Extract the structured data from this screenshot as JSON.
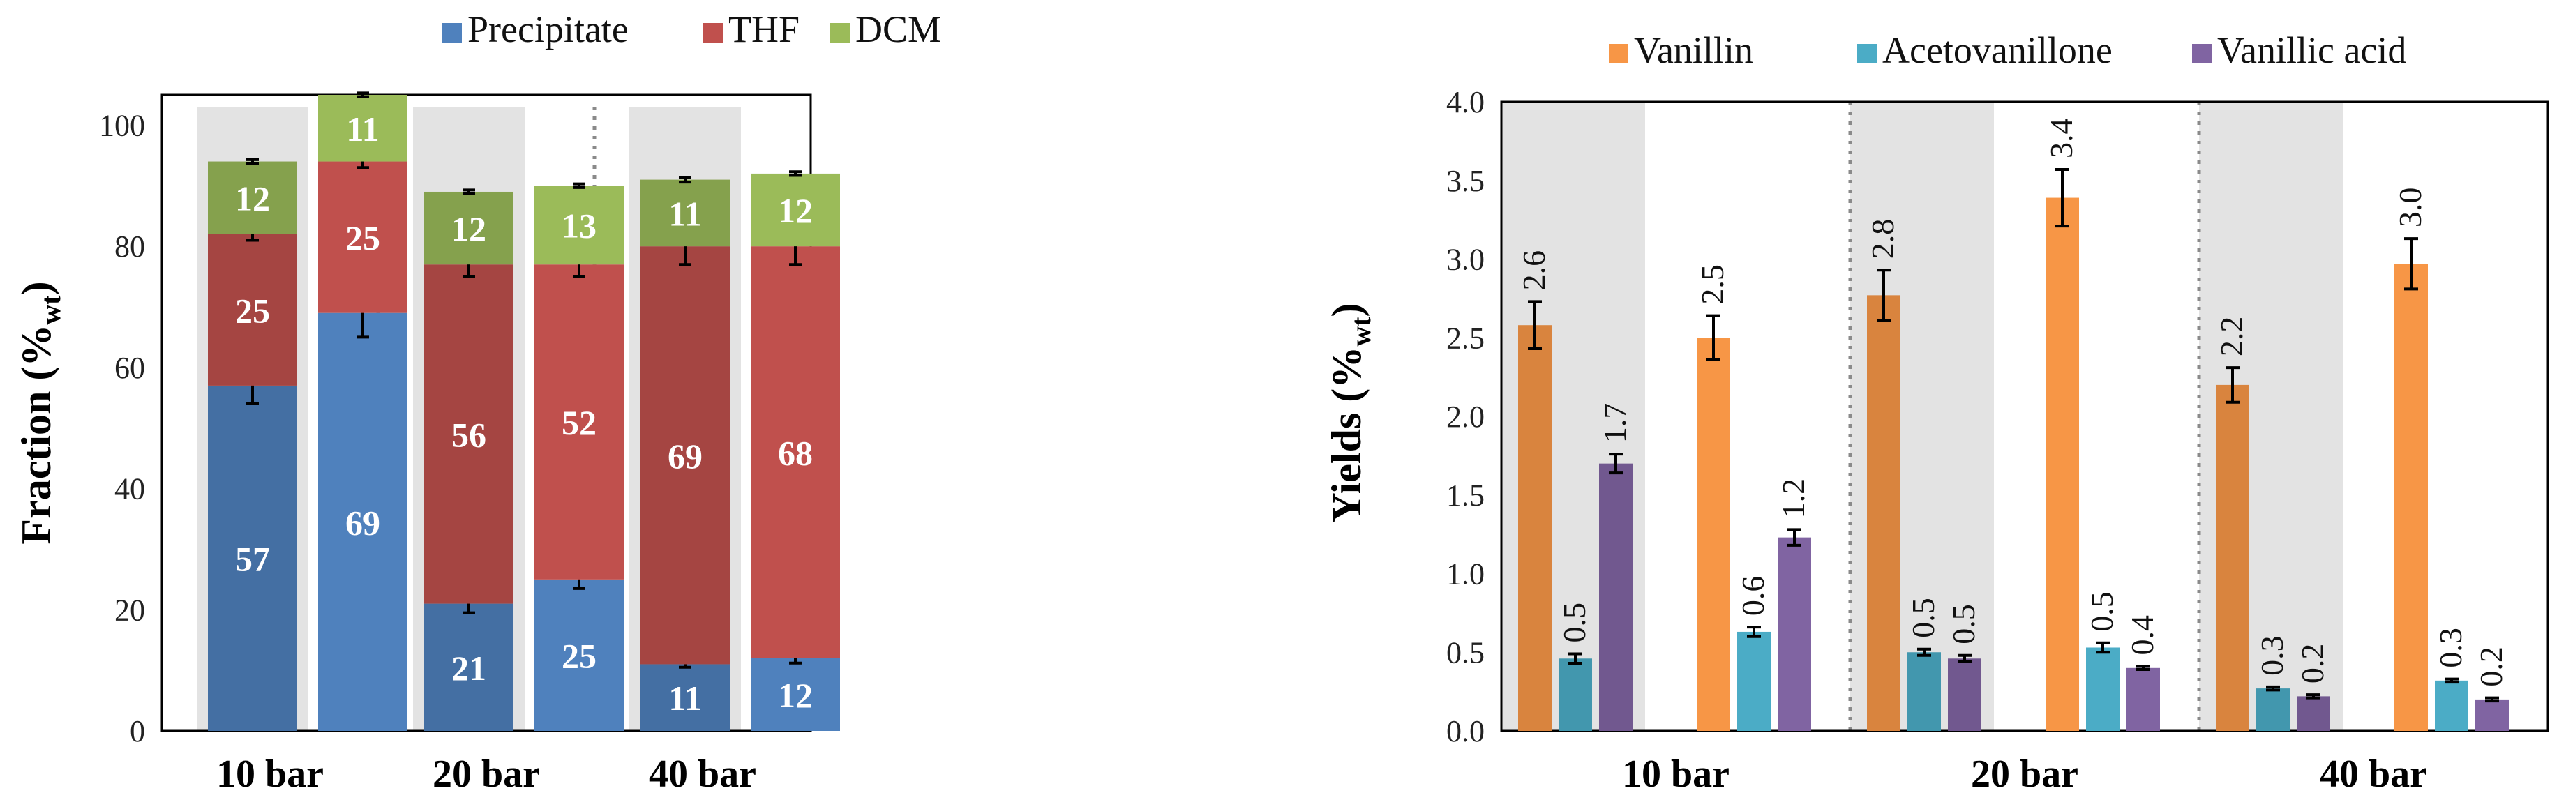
{
  "chart_data": [
    {
      "type": "bar",
      "stacked": true,
      "ylabel_main": "Fraction (%",
      "ylabel_sub": "wt",
      "ylabel_close": ")",
      "ylim": [
        0,
        100
      ],
      "yticks": [
        "0",
        "20",
        "40",
        "60",
        "80",
        "100"
      ],
      "groups": [
        "10 bar",
        "20 bar",
        "40 bar"
      ],
      "legend_position": "top",
      "series": [
        {
          "name": "Precipitate",
          "color": "#4f81bd",
          "values": [
            57,
            69,
            21,
            25,
            11,
            12
          ],
          "labels": [
            "57",
            "69",
            "21",
            "25",
            "11",
            "12"
          ],
          "err": [
            3,
            4,
            1.5,
            1.5,
            0.5,
            0.8
          ]
        },
        {
          "name": "THF",
          "color": "#c0504d",
          "values": [
            25,
            25,
            56,
            52,
            69,
            68
          ],
          "labels": [
            "25",
            "25",
            "56",
            "52",
            "69",
            "68"
          ],
          "err": [
            1,
            1,
            2,
            2,
            3,
            3
          ]
        },
        {
          "name": "DCM",
          "color": "#9bbb59",
          "values": [
            12,
            11,
            12,
            13,
            11,
            12
          ],
          "labels": [
            "12",
            "11",
            "12",
            "13",
            "11",
            "12"
          ],
          "err": [
            0.3,
            0.3,
            0.3,
            0.3,
            0.4,
            0.3
          ]
        }
      ]
    },
    {
      "type": "bar",
      "ylabel_main": "Yields (%",
      "ylabel_sub": "wt",
      "ylabel_close": ")",
      "ylim": [
        0,
        4.0
      ],
      "yticks": [
        "0.0",
        "0.5",
        "1.0",
        "1.5",
        "2.0",
        "2.5",
        "3.0",
        "3.5",
        "4.0"
      ],
      "groups": [
        "10 bar",
        "20 bar",
        "40 bar"
      ],
      "legend_position": "top",
      "series": [
        {
          "name": "Vanillin",
          "color": "#f79646",
          "values": [
            2.58,
            2.5,
            2.77,
            3.39,
            2.2,
            2.97
          ],
          "labels": [
            "2.6",
            "2.5",
            "2.8",
            "3.4",
            "2.2",
            "3.0"
          ],
          "err": [
            0.15,
            0.14,
            0.16,
            0.18,
            0.11,
            0.16
          ]
        },
        {
          "name": "Acetovanillone",
          "color": "#4bacc6",
          "values": [
            0.46,
            0.63,
            0.5,
            0.53,
            0.27,
            0.32
          ],
          "labels": [
            "0.5",
            "0.6",
            "0.5",
            "0.5",
            "0.3",
            "0.3"
          ],
          "err": [
            0.03,
            0.03,
            0.02,
            0.03,
            0.01,
            0.01
          ]
        },
        {
          "name": "Vanillic acid",
          "color": "#8064a2",
          "values": [
            1.7,
            1.23,
            0.46,
            0.4,
            0.22,
            0.2
          ],
          "labels": [
            "1.7",
            "1.2",
            "0.5",
            "0.4",
            "0.2",
            "0.2"
          ],
          "err": [
            0.06,
            0.05,
            0.02,
            0.01,
            0.01,
            0.01
          ]
        }
      ]
    }
  ]
}
